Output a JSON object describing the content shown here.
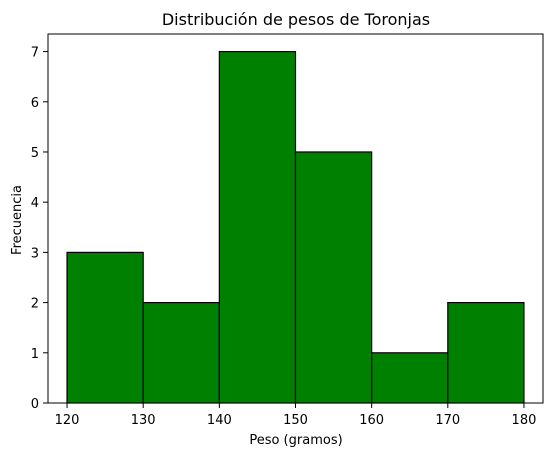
{
  "chart_data": {
    "type": "bar",
    "title": "Distribución de pesos de Toronjas",
    "xlabel": "Peso (gramos)",
    "ylabel": "Frecuencia",
    "bins": [
      {
        "start": 120,
        "end": 130,
        "count": 3
      },
      {
        "start": 130,
        "end": 140,
        "count": 2
      },
      {
        "start": 140,
        "end": 150,
        "count": 7
      },
      {
        "start": 150,
        "end": 160,
        "count": 5
      },
      {
        "start": 160,
        "end": 170,
        "count": 1
      },
      {
        "start": 170,
        "end": 180,
        "count": 2
      }
    ],
    "x_ticks": [
      120,
      130,
      140,
      150,
      160,
      170,
      180
    ],
    "y_ticks": [
      0,
      1,
      2,
      3,
      4,
      5,
      6,
      7
    ],
    "xlim": [
      117.5,
      182.5
    ],
    "ylim": [
      0,
      7.35
    ],
    "grid": false,
    "bar_color": "#008000",
    "edge_color": "#000000"
  }
}
